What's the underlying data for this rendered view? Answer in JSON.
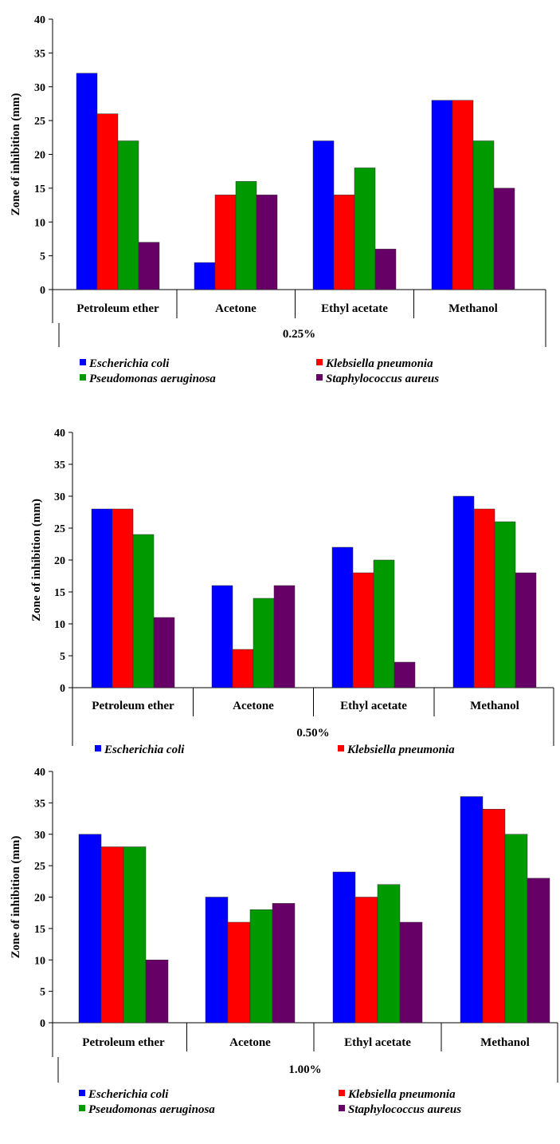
{
  "colors": {
    "Escherichia coli": "#0000ff",
    "Klebsiella pneumonia": "#ff0000",
    "Pseudomonas aeruginosa": "#009900",
    "Staphylococcus aureus": "#660066"
  },
  "chart_data": [
    {
      "type": "bar",
      "ylabel": "Zone of inhibition (mm)",
      "xlabel": "0.25%",
      "ylim": [
        0,
        40
      ],
      "yticks": [
        "0",
        "5",
        "10",
        "15",
        "20",
        "25",
        "30",
        "35",
        "40"
      ],
      "categories": [
        "Petroleum ether",
        "Acetone",
        "Ethyl acetate",
        "Methanol"
      ],
      "series": [
        {
          "name": "Escherichia coli",
          "values": [
            32,
            4,
            22,
            28
          ]
        },
        {
          "name": "Klebsiella pneumonia",
          "values": [
            26,
            14,
            14,
            28
          ]
        },
        {
          "name": "Pseudomonas aeruginosa",
          "values": [
            22,
            16,
            18,
            22
          ]
        },
        {
          "name": "Staphylococcus aureus",
          "values": [
            7,
            14,
            6,
            15
          ]
        }
      ],
      "legend": [
        "Escherichia coli",
        "Klebsiella pneumonia",
        "Pseudomonas aeruginosa",
        "Staphylococcus aureus"
      ]
    },
    {
      "type": "bar",
      "ylabel": "Zone of inhibition (mm)",
      "xlabel": "0.50%",
      "ylim": [
        0,
        40
      ],
      "yticks": [
        "0",
        "5",
        "10",
        "15",
        "20",
        "25",
        "30",
        "35",
        "40"
      ],
      "categories": [
        "Petroleum ether",
        "Acetone",
        "Ethyl acetate",
        "Methanol"
      ],
      "series": [
        {
          "name": "Escherichia coli",
          "values": [
            28,
            16,
            22,
            30
          ]
        },
        {
          "name": "Klebsiella pneumonia",
          "values": [
            28,
            6,
            18,
            28
          ]
        },
        {
          "name": "Pseudomonas aeruginosa",
          "values": [
            24,
            14,
            20,
            26
          ]
        },
        {
          "name": "Staphylococcus aureus",
          "values": [
            11,
            16,
            4,
            18
          ]
        }
      ],
      "legend": [
        "Escherichia coli",
        "Klebsiella pneumonia"
      ]
    },
    {
      "type": "bar",
      "ylabel": "Zone of inhibition (mm)",
      "xlabel": "1.00%",
      "ylim": [
        0,
        40
      ],
      "yticks": [
        "0",
        "5",
        "10",
        "15",
        "20",
        "25",
        "30",
        "35",
        "40"
      ],
      "categories": [
        "Petroleum ether",
        "Acetone",
        "Ethyl acetate",
        "Methanol"
      ],
      "series": [
        {
          "name": "Escherichia coli",
          "values": [
            30,
            20,
            24,
            36
          ]
        },
        {
          "name": "Klebsiella pneumonia",
          "values": [
            28,
            16,
            20,
            34
          ]
        },
        {
          "name": "Pseudomonas aeruginosa",
          "values": [
            28,
            18,
            22,
            30
          ]
        },
        {
          "name": "Staphylococcus aureus",
          "values": [
            10,
            19,
            16,
            23
          ]
        }
      ],
      "legend": [
        "Escherichia coli",
        "Klebsiella pneumonia",
        "Pseudomonas aeruginosa",
        "Staphylococcus aureus"
      ]
    }
  ]
}
